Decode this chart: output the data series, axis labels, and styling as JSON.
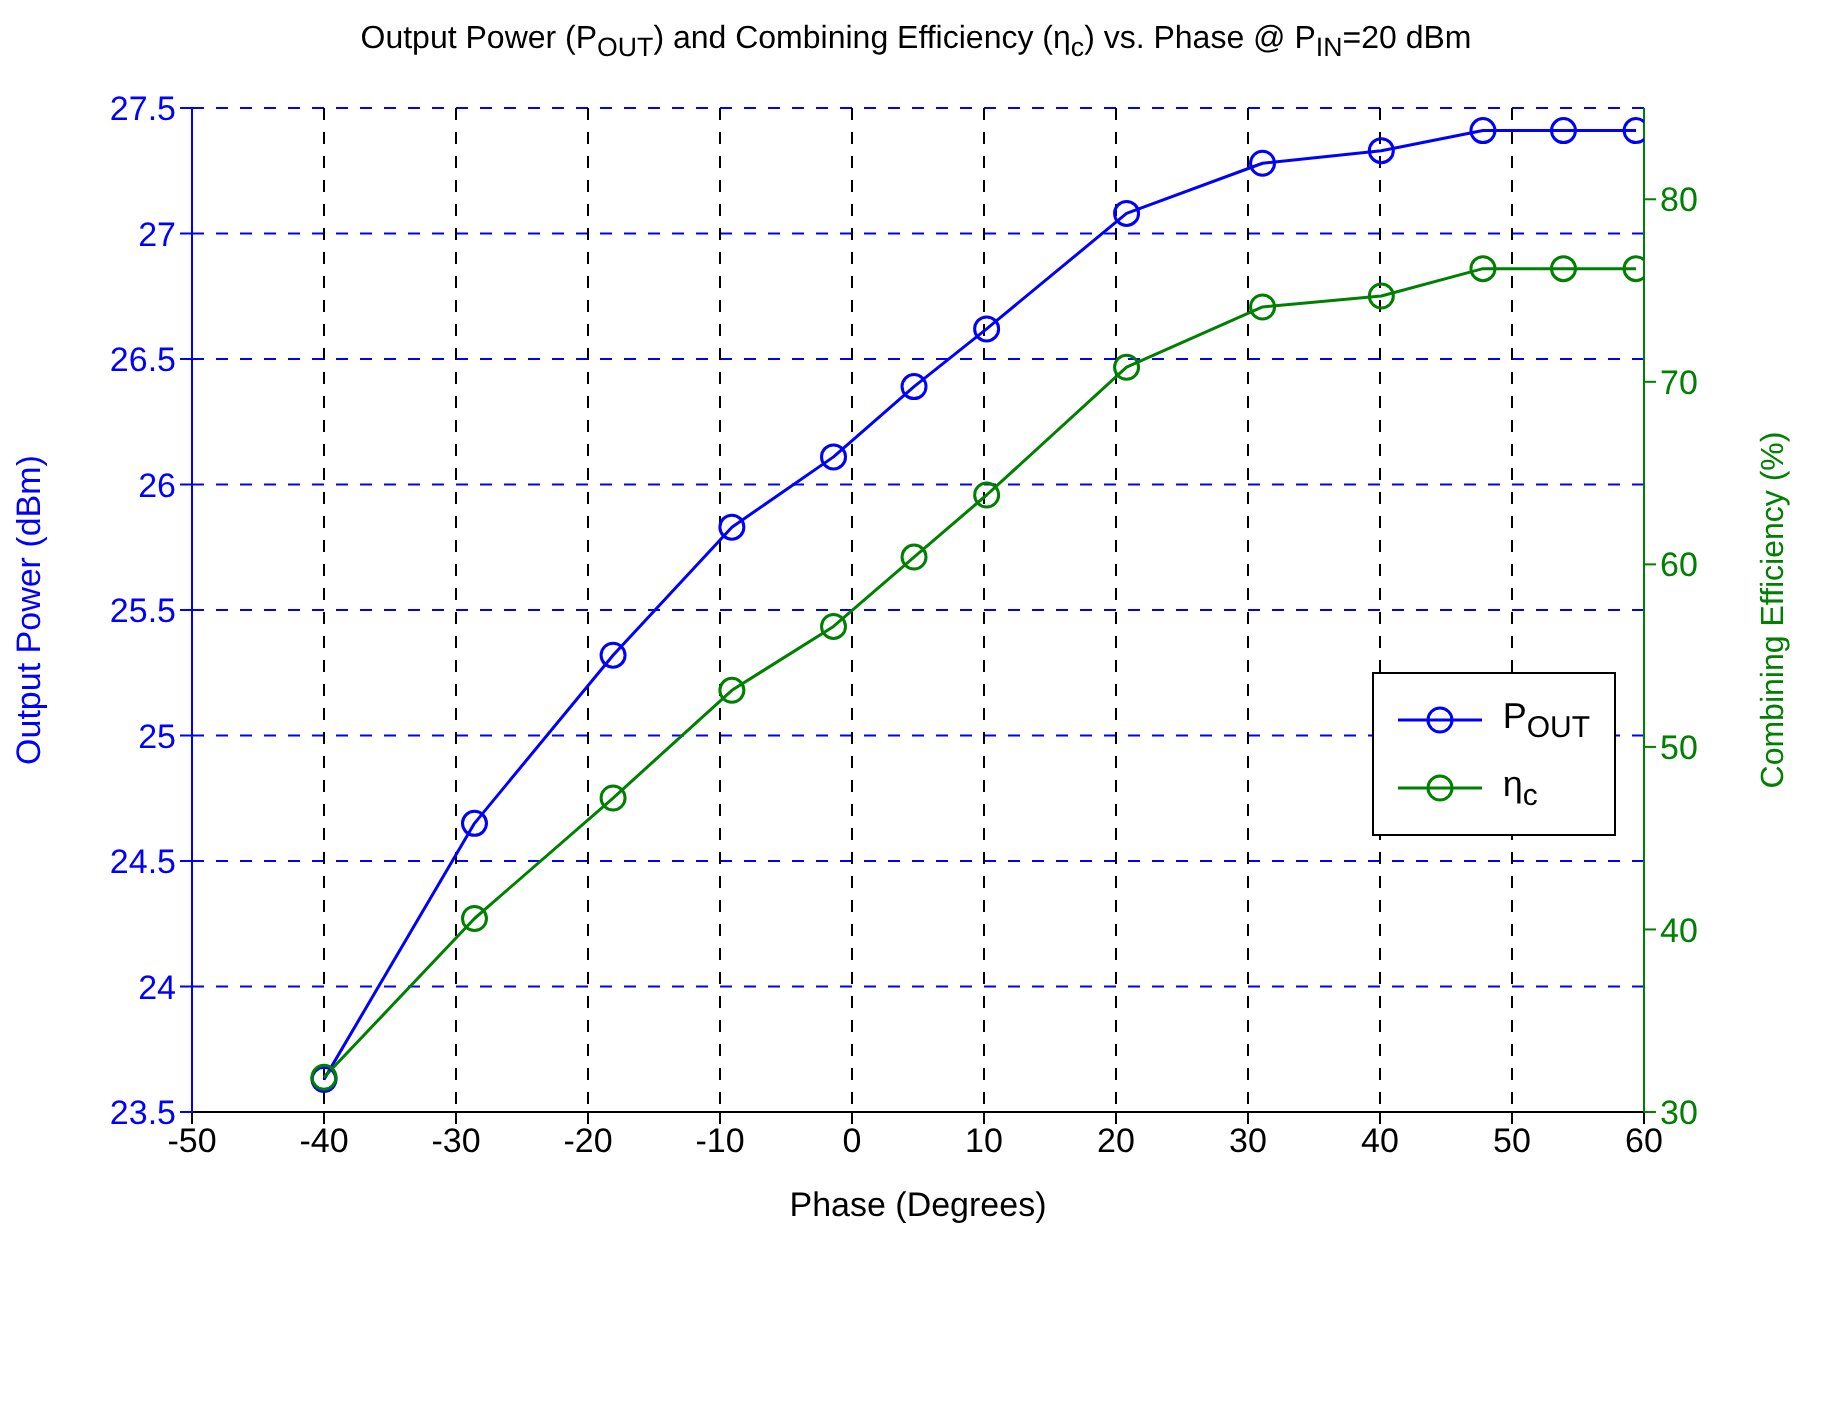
{
  "chart_data": {
    "type": "line",
    "title": "Output Power (P$_{OUT}$) and Combining Efficiency (η$_{c}$) vs. Phase @ P$_{IN}$=20 dBm",
    "xlabel": "Phase (Degrees)",
    "ylabel": "Output Power (dBm)",
    "y2label": "Combining Efficiency (%)",
    "x": [
      -40,
      -28.6,
      -18.1,
      -9.1,
      -1.4,
      4.7,
      10.2,
      20.8,
      31.1,
      40.1,
      47.8,
      53.9,
      59.4
    ],
    "series": [
      {
        "name": "P$_{OUT}$",
        "color": "#0000ff",
        "values": [
          23.63,
          24.65,
          25.32,
          25.83,
          26.11,
          26.39,
          26.62,
          27.08,
          27.28,
          27.33,
          27.41,
          27.41,
          27.41
        ]
      },
      {
        "name": "η$_{c}$",
        "color": "#008000",
        "axis": "y2",
        "values": [
          31.9,
          40.6,
          47.2,
          53.1,
          56.6,
          60.4,
          63.8,
          70.8,
          74.1,
          74.7,
          76.2,
          76.2,
          76.2
        ]
      }
    ],
    "xlim": [
      -50,
      60
    ],
    "xticks": [
      -50,
      -40,
      -30,
      -20,
      -10,
      0,
      10,
      20,
      30,
      40,
      50,
      60
    ],
    "ylim": [
      23.5,
      27.5
    ],
    "yticks": [
      23.5,
      24,
      24.5,
      25,
      25.5,
      26,
      26.5,
      27,
      27.5
    ],
    "y2lim": [
      30,
      85
    ],
    "y2ticks": [
      30,
      40,
      50,
      60,
      70,
      80
    ],
    "grid": true,
    "legend": "right",
    "marker": "circle",
    "line_style": "solid"
  }
}
